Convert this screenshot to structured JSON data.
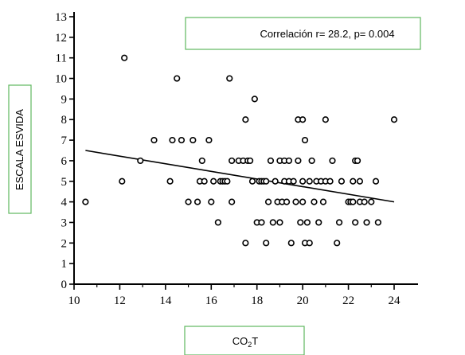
{
  "chart_data": {
    "type": "scatter",
    "annotation": "Correlación r= 28.2, p= 0.004",
    "ylabel": "ESCALA ESVIDA",
    "xlabel": {
      "main": "CO",
      "sub": "2",
      "tail": "T"
    },
    "xlim": [
      10,
      24
    ],
    "ylim": [
      0,
      13
    ],
    "xticks": [
      10,
      12,
      14,
      16,
      18,
      20,
      22,
      24
    ],
    "yticks": [
      0,
      1,
      2,
      3,
      4,
      5,
      6,
      7,
      8,
      9,
      10,
      11,
      12,
      13
    ],
    "grid": false,
    "trendline": {
      "x": [
        10.5,
        24
      ],
      "y": [
        6.5,
        4.0
      ]
    },
    "points": [
      [
        10.5,
        4
      ],
      [
        12.1,
        5
      ],
      [
        12.2,
        11
      ],
      [
        12.9,
        6
      ],
      [
        13.5,
        7
      ],
      [
        14.2,
        5
      ],
      [
        14.3,
        7
      ],
      [
        14.5,
        10
      ],
      [
        14.7,
        7
      ],
      [
        15.0,
        4
      ],
      [
        15.2,
        7
      ],
      [
        15.4,
        4
      ],
      [
        15.5,
        5
      ],
      [
        15.6,
        6
      ],
      [
        15.7,
        5
      ],
      [
        15.9,
        7
      ],
      [
        16.0,
        4
      ],
      [
        16.1,
        5
      ],
      [
        16.3,
        3
      ],
      [
        16.4,
        5
      ],
      [
        16.5,
        5
      ],
      [
        16.6,
        5
      ],
      [
        16.7,
        5
      ],
      [
        16.8,
        10
      ],
      [
        16.9,
        4
      ],
      [
        16.9,
        6
      ],
      [
        17.2,
        6
      ],
      [
        17.4,
        6
      ],
      [
        17.5,
        2
      ],
      [
        17.5,
        8
      ],
      [
        17.6,
        6
      ],
      [
        17.7,
        6
      ],
      [
        17.8,
        5
      ],
      [
        17.9,
        9
      ],
      [
        18.0,
        3
      ],
      [
        18.1,
        5
      ],
      [
        18.2,
        3
      ],
      [
        18.2,
        5
      ],
      [
        18.3,
        5
      ],
      [
        18.4,
        2
      ],
      [
        18.4,
        5
      ],
      [
        18.5,
        4
      ],
      [
        18.6,
        6
      ],
      [
        18.7,
        3
      ],
      [
        18.8,
        5
      ],
      [
        18.9,
        4
      ],
      [
        19.0,
        3
      ],
      [
        19.0,
        6
      ],
      [
        19.1,
        4
      ],
      [
        19.2,
        5
      ],
      [
        19.2,
        6
      ],
      [
        19.3,
        4
      ],
      [
        19.4,
        6
      ],
      [
        19.4,
        5
      ],
      [
        19.5,
        2
      ],
      [
        19.6,
        5
      ],
      [
        19.7,
        4
      ],
      [
        19.8,
        8
      ],
      [
        19.8,
        6
      ],
      [
        19.9,
        3
      ],
      [
        20.0,
        8
      ],
      [
        20.0,
        5
      ],
      [
        20.0,
        4
      ],
      [
        20.1,
        2
      ],
      [
        20.1,
        7
      ],
      [
        20.2,
        3
      ],
      [
        20.3,
        5
      ],
      [
        20.3,
        2
      ],
      [
        20.4,
        6
      ],
      [
        20.5,
        4
      ],
      [
        20.6,
        5
      ],
      [
        20.7,
        3
      ],
      [
        20.8,
        5
      ],
      [
        20.9,
        4
      ],
      [
        21.0,
        5
      ],
      [
        21.0,
        8
      ],
      [
        21.2,
        5
      ],
      [
        21.3,
        6
      ],
      [
        21.5,
        2
      ],
      [
        21.6,
        3
      ],
      [
        21.7,
        5
      ],
      [
        22.0,
        4
      ],
      [
        22.1,
        4
      ],
      [
        22.2,
        5
      ],
      [
        22.2,
        4
      ],
      [
        22.3,
        6
      ],
      [
        22.3,
        3
      ],
      [
        22.4,
        6
      ],
      [
        22.5,
        5
      ],
      [
        22.5,
        4
      ],
      [
        22.7,
        4
      ],
      [
        22.8,
        3
      ],
      [
        23.0,
        4
      ],
      [
        23.2,
        5
      ],
      [
        23.3,
        3
      ],
      [
        24.0,
        8
      ]
    ]
  }
}
